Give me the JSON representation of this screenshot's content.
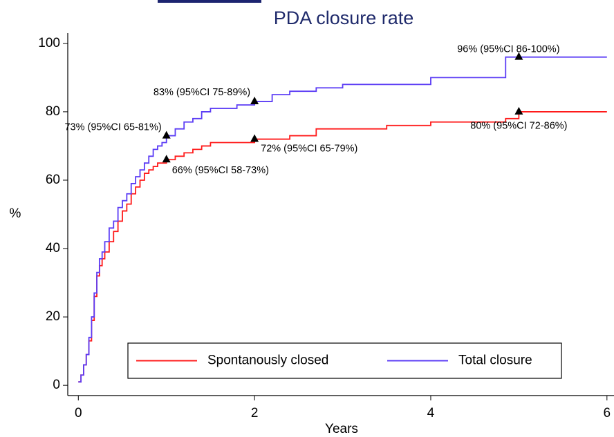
{
  "chart_data": {
    "type": "line",
    "step": true,
    "title": "PDA closure rate",
    "x_label": "Years",
    "y_label": "%",
    "x": [
      0,
      0.03,
      0.06,
      0.09,
      0.12,
      0.15,
      0.18,
      0.21,
      0.24,
      0.27,
      0.3,
      0.35,
      0.4,
      0.45,
      0.5,
      0.55,
      0.6,
      0.65,
      0.7,
      0.75,
      0.8,
      0.85,
      0.9,
      0.95,
      1.0,
      1.1,
      1.2,
      1.3,
      1.4,
      1.5,
      1.8,
      2.0,
      2.2,
      2.4,
      2.7,
      3.0,
      3.5,
      4.0,
      4.5,
      4.85,
      5.0,
      6.0
    ],
    "series": [
      {
        "name": "Spontanously closed",
        "color": "#ff1a1a",
        "values": [
          1,
          3,
          6,
          9,
          13,
          19,
          26,
          32,
          35,
          37,
          39,
          42,
          45,
          48,
          51,
          53,
          56,
          58,
          60,
          62,
          63,
          64,
          65,
          65,
          66,
          67,
          68,
          69,
          70,
          71,
          71,
          72,
          72,
          73,
          75,
          75,
          76,
          77,
          77,
          78,
          80,
          80
        ]
      },
      {
        "name": "Total closure",
        "color": "#5b3cf5",
        "values": [
          1,
          3,
          6,
          9,
          14,
          20,
          27,
          33,
          37,
          39,
          42,
          46,
          48,
          52,
          54,
          56,
          59,
          61,
          63,
          65,
          67,
          69,
          70,
          71,
          73,
          75,
          77,
          78,
          80,
          81,
          82,
          83,
          85,
          86,
          87,
          88,
          88,
          90,
          90,
          96,
          96,
          96
        ]
      }
    ],
    "annotations": [
      {
        "x": 1,
        "y": 73,
        "text": "73% (95%CI 65-81%)"
      },
      {
        "x": 1,
        "y": 66,
        "text": "66% (95%CI 58-73%)"
      },
      {
        "x": 2,
        "y": 83,
        "text": "83% (95%CI 75-89%)"
      },
      {
        "x": 2,
        "y": 72,
        "text": "72% (95%CI 65-79%)"
      },
      {
        "x": 5,
        "y": 96,
        "text": "96% (95%CI 86-100%)"
      },
      {
        "x": 5,
        "y": 80,
        "text": "80% (95%CI 72-86%)"
      }
    ],
    "xlim": [
      -0.12,
      6.08
    ],
    "ylim": [
      -3,
      103
    ],
    "xticks": [
      0,
      2,
      4,
      6
    ],
    "yticks": [
      0,
      20,
      40,
      60,
      80,
      100
    ],
    "grid": false,
    "legend": "bottom"
  }
}
